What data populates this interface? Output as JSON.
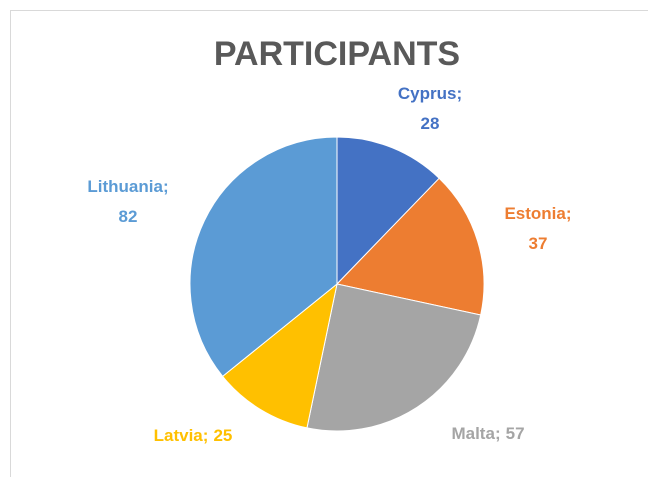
{
  "chart_data": {
    "type": "pie",
    "title": "PARTICIPANTS",
    "categories": [
      "Cyprus",
      "Estonia",
      "Malta",
      "Latvia",
      "Lithuania"
    ],
    "values": [
      28,
      37,
      57,
      25,
      82
    ],
    "colors": [
      "#4472c4",
      "#ed7d31",
      "#a5a5a5",
      "#ffc000",
      "#5b9bd5"
    ],
    "label_separator": ";"
  }
}
